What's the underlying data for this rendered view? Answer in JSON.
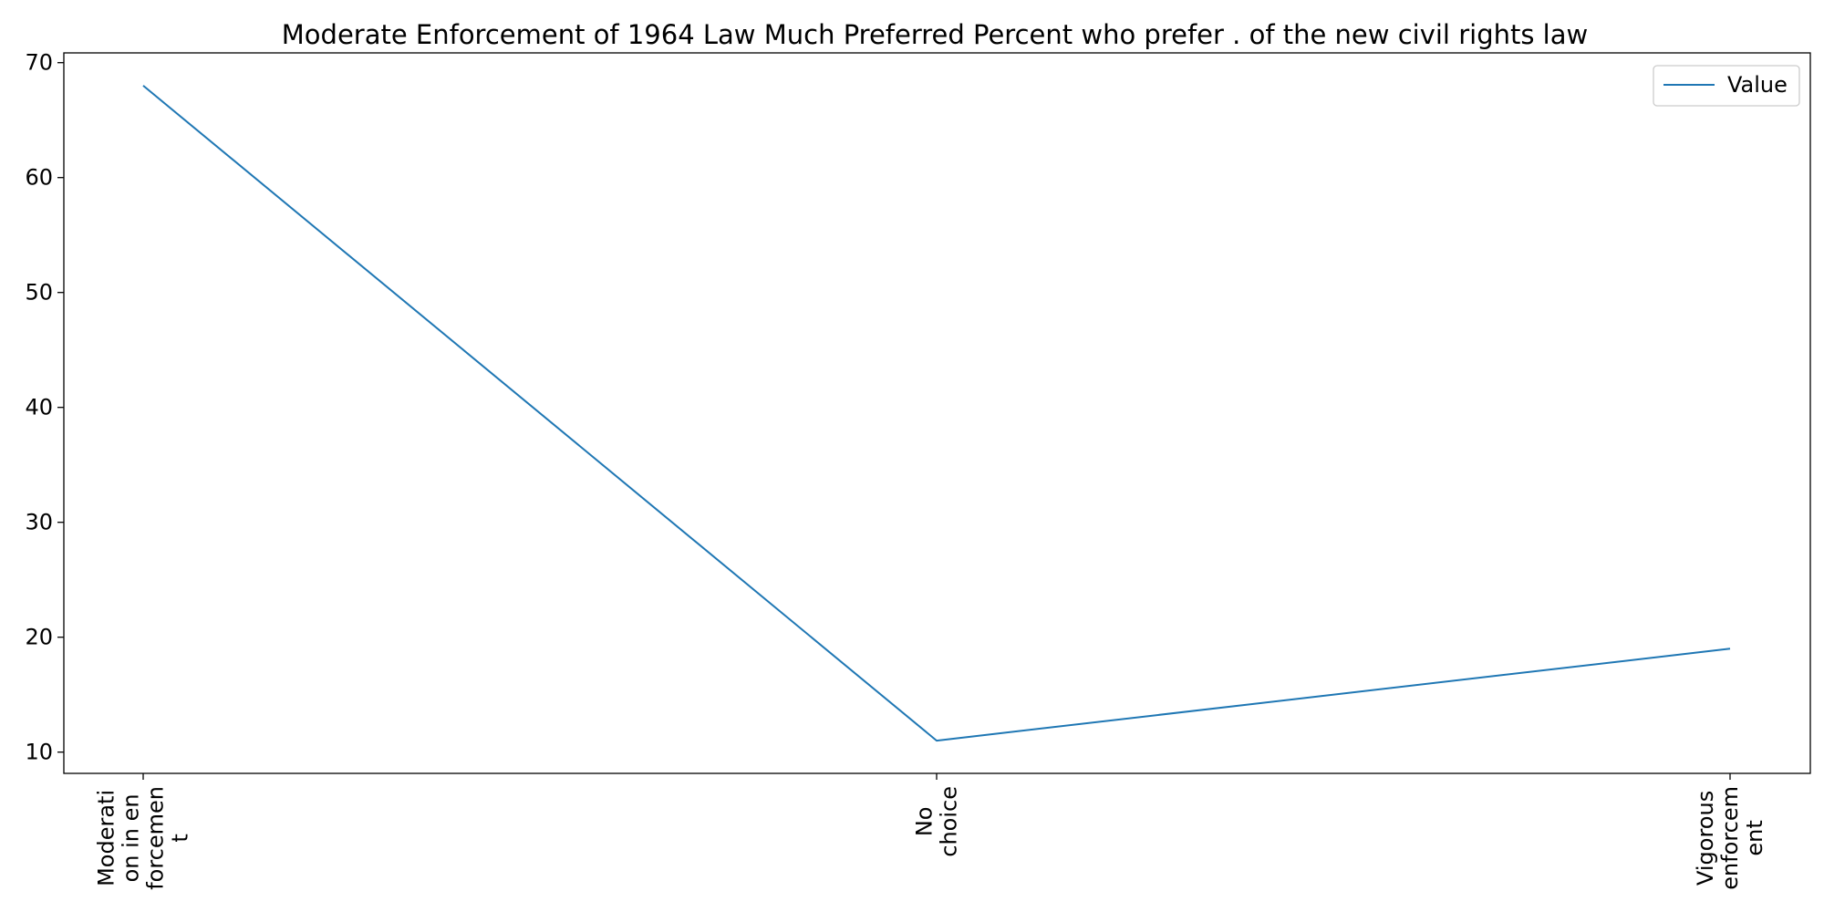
{
  "chart_data": {
    "type": "line",
    "title": "Moderate Enforcement of 1964 Law Much Preferred Percent who prefer . of the new civil rights law",
    "xlabel": "",
    "ylabel": "",
    "categories": [
      [
        "Moderati",
        "on in en",
        "forcemen",
        "t"
      ],
      [
        "No",
        "choice"
      ],
      [
        "Vigorous",
        "enforcem",
        "ent"
      ]
    ],
    "series": [
      {
        "name": "Value",
        "color": "#1f77b4",
        "values": [
          68,
          11,
          19
        ]
      }
    ],
    "ylim": [
      8.15,
      70.85
    ],
    "yticks": [
      10,
      20,
      30,
      40,
      50,
      60,
      70
    ],
    "grid": false,
    "legend": "upper-right"
  }
}
